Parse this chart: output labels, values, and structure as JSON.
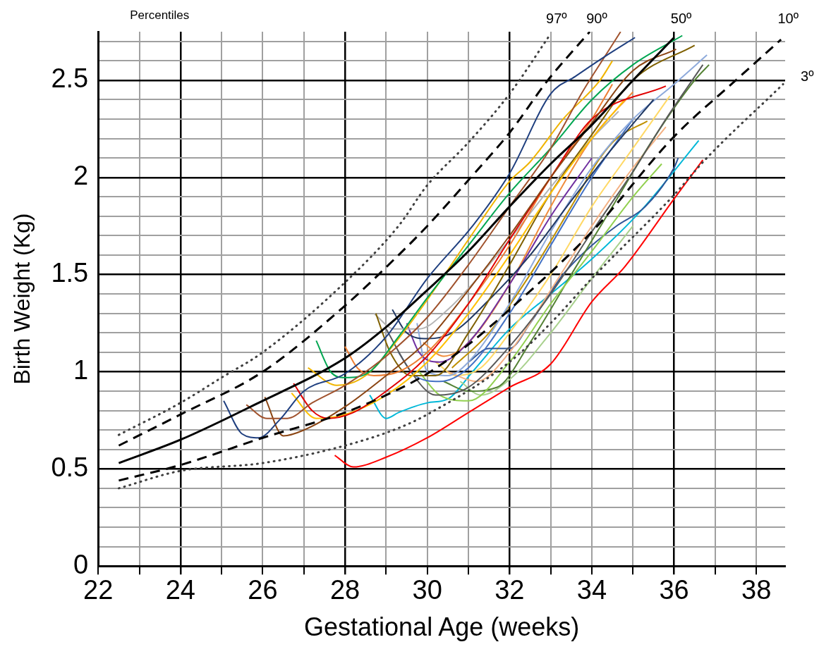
{
  "chart_data": {
    "type": "line",
    "xlabel": "Gestational Age (weeks)",
    "ylabel": "Birth Weight (Kg)",
    "annotations": [
      "Percentiles"
    ],
    "xlim": [
      22,
      38.7
    ],
    "xticks": [
      22,
      {
        "value": 23,
        "label": null
      },
      24,
      {
        "value": 25,
        "label": null
      },
      26,
      {
        "value": 27,
        "label": null
      },
      28,
      {
        "value": 29,
        "label": null
      },
      30,
      {
        "value": 31,
        "label": null
      },
      32,
      {
        "value": 33,
        "label": null
      },
      34,
      {
        "value": 35,
        "label": null
      },
      36,
      {
        "value": 37,
        "label": null
      },
      38
    ],
    "ylim": [
      0,
      2.75
    ],
    "yticks": [
      0,
      {
        "value": 0.1,
        "label": null
      },
      {
        "value": 0.2,
        "label": null
      },
      {
        "value": 0.3,
        "label": null
      },
      {
        "value": 0.4,
        "label": null
      },
      0.5,
      {
        "value": 0.6,
        "label": null
      },
      {
        "value": 0.7,
        "label": null
      },
      {
        "value": 0.8,
        "label": null
      },
      {
        "value": 0.9,
        "label": null
      },
      1,
      {
        "value": 1.1,
        "label": null
      },
      {
        "value": 1.2,
        "label": null
      },
      {
        "value": 1.3,
        "label": null
      },
      {
        "value": 1.4,
        "label": null
      },
      1.5,
      {
        "value": 1.6,
        "label": null
      },
      {
        "value": 1.7,
        "label": null
      },
      {
        "value": 1.8,
        "label": null
      },
      {
        "value": 1.9,
        "label": null
      },
      2,
      {
        "value": 2.1,
        "label": null
      },
      {
        "value": 2.2,
        "label": null
      },
      {
        "value": 2.3,
        "label": null
      },
      {
        "value": 2.4,
        "label": null
      },
      2.5,
      {
        "value": 2.6,
        "label": null
      },
      {
        "value": 2.7,
        "label": null
      }
    ],
    "grid": true,
    "legend": false,
    "marker": "none",
    "line_style": "solid",
    "series": [
      {
        "name": "97º",
        "color": "#404040",
        "line_style": "dotted",
        "x": [
          22.5,
          24,
          25,
          26,
          28,
          29.3,
          30,
          31,
          32,
          32.97
        ],
        "values": [
          0.675,
          0.84,
          0.97,
          1.1,
          1.46,
          1.75,
          1.96,
          2.18,
          2.43,
          2.73
        ]
      },
      {
        "name": "90º",
        "color": "#000000",
        "line_style": "dashed",
        "x": [
          22.5,
          24,
          26,
          28,
          29.3,
          30,
          31.14,
          32,
          32.93,
          33.95
        ],
        "values": [
          0.62,
          0.78,
          1.0,
          1.34,
          1.6,
          1.75,
          2.02,
          2.23,
          2.5,
          2.75
        ]
      },
      {
        "name": "50º",
        "color": "#000000",
        "x": [
          22.5,
          24,
          25.8,
          28,
          29,
          30,
          31,
          32,
          33,
          34,
          35,
          36
        ],
        "values": [
          0.53,
          0.65,
          0.83,
          1.07,
          1.23,
          1.42,
          1.62,
          1.85,
          2.07,
          2.27,
          2.5,
          2.72
        ]
      },
      {
        "name": "10º",
        "color": "#000000",
        "line_style": "dashed",
        "x": [
          22.5,
          24,
          26,
          28,
          29.3,
          30,
          31,
          32,
          34,
          36,
          37.5,
          38.6
        ],
        "values": [
          0.44,
          0.52,
          0.66,
          0.79,
          0.91,
          0.99,
          1.14,
          1.32,
          1.72,
          2.21,
          2.5,
          2.71
        ]
      },
      {
        "name": "3º",
        "color": "#404040",
        "line_style": "dotted",
        "x": [
          22.5,
          24,
          26,
          28,
          29.3,
          30,
          32,
          33,
          34,
          36,
          36.75,
          38.65
        ],
        "values": [
          0.4,
          0.49,
          0.53,
          0.62,
          0.71,
          0.78,
          1.05,
          1.25,
          1.48,
          1.91,
          2.09,
          2.48
        ]
      },
      {
        "color": "#1f3f7f",
        "x": [
          25.05,
          25.5,
          25.9,
          26.4,
          27,
          28,
          29,
          30,
          31.1,
          32,
          33,
          33.6,
          34.3,
          35.05
        ],
        "values": [
          0.85,
          0.68,
          0.66,
          0.75,
          0.9,
          0.99,
          1.18,
          1.48,
          1.75,
          2.02,
          2.43,
          2.52,
          2.62,
          2.72
        ]
      },
      {
        "color": "#a0522d",
        "x": [
          25.6,
          26.1,
          26.6,
          27.2,
          28,
          29,
          30,
          31,
          32,
          33,
          33.8,
          34.4,
          34.7
        ],
        "values": [
          0.83,
          0.76,
          0.76,
          0.84,
          0.93,
          1.08,
          1.28,
          1.55,
          1.85,
          2.15,
          2.45,
          2.65,
          2.75
        ]
      },
      {
        "color": "#8b4513",
        "x": [
          26.05,
          26.5,
          27,
          28,
          29,
          30,
          31,
          32,
          33,
          34,
          35,
          36.05
        ],
        "values": [
          0.87,
          0.67,
          0.7,
          0.82,
          0.98,
          1.16,
          1.42,
          1.7,
          2.0,
          2.28,
          2.55,
          2.66
        ]
      },
      {
        "color": "#e00000",
        "x": [
          26.75,
          27.2,
          27.6,
          28.2,
          29,
          30,
          31,
          32,
          33,
          34,
          35.8
        ],
        "values": [
          0.94,
          0.8,
          0.76,
          0.79,
          0.9,
          1.08,
          1.35,
          1.68,
          2.0,
          2.3,
          2.47
        ]
      },
      {
        "color": "#ffc000",
        "x": [
          26.7,
          27.3,
          28,
          29,
          30,
          31,
          32,
          33,
          34,
          34.8
        ],
        "values": [
          0.89,
          0.76,
          0.78,
          0.88,
          1.05,
          1.3,
          1.6,
          1.92,
          2.2,
          2.4
        ]
      },
      {
        "color": "#00a651",
        "x": [
          27.3,
          27.65,
          28,
          28.6,
          29.3,
          30,
          31,
          32,
          33,
          34,
          35,
          36.2
        ],
        "values": [
          1.16,
          1.0,
          0.97,
          1.0,
          1.18,
          1.38,
          1.65,
          1.92,
          2.15,
          2.4,
          2.58,
          2.73
        ]
      },
      {
        "color": "#f0b400",
        "x": [
          27.1,
          27.8,
          28.5,
          29.3,
          30,
          31,
          32,
          32.5,
          33.3,
          34.2,
          34.5
        ],
        "values": [
          1.02,
          0.93,
          0.98,
          1.17,
          1.37,
          1.68,
          1.98,
          2.08,
          2.3,
          2.5,
          2.6
        ]
      },
      {
        "color": "#ed7d31",
        "x": [
          28,
          28.3,
          28.7,
          29.3,
          30,
          31,
          32,
          33,
          34,
          34.5
        ],
        "values": [
          1.13,
          1.02,
          0.98,
          1.0,
          1.1,
          1.35,
          1.65,
          2.0,
          2.3,
          2.48
        ]
      },
      {
        "color": "#7f6000",
        "x": [
          28.75,
          29.1,
          29.6,
          30.2,
          31,
          32,
          33,
          34,
          35,
          36.5
        ],
        "values": [
          1.3,
          1.1,
          0.98,
          0.98,
          1.2,
          1.55,
          1.92,
          2.22,
          2.5,
          2.68
        ]
      },
      {
        "color": "#b4b4b4",
        "x": [
          28.7,
          29.2,
          29.8,
          30.5,
          31.3,
          32,
          33,
          34,
          34.65
        ],
        "values": [
          1.3,
          1.22,
          1.22,
          1.32,
          1.5,
          1.68,
          1.95,
          2.2,
          2.34
        ]
      },
      {
        "color": "#595959",
        "x": [
          29,
          29.6,
          30.2,
          31,
          32,
          33,
          34,
          35,
          35.8,
          36.7
        ],
        "values": [
          1.22,
          1.0,
          0.88,
          0.92,
          1.13,
          1.4,
          1.72,
          2.03,
          2.3,
          2.58
        ]
      },
      {
        "color": "#203864",
        "x": [
          29.15,
          29.5,
          30,
          30.6,
          31.5,
          32.5,
          33.5,
          34.5,
          35.5
        ],
        "values": [
          1.32,
          1.2,
          1.17,
          1.2,
          1.37,
          1.6,
          1.88,
          2.15,
          2.4
        ]
      },
      {
        "color": "#7030a0",
        "x": [
          29.5,
          29.8,
          30.3,
          31,
          32,
          33,
          34
        ],
        "values": [
          1.25,
          1.1,
          1.05,
          1.15,
          1.45,
          1.8,
          2.1
        ]
      },
      {
        "color": "#8eaadb",
        "x": [
          29.75,
          30,
          30.5,
          31,
          32,
          33,
          34,
          35,
          36,
          36.8
        ],
        "values": [
          1.25,
          1.0,
          0.98,
          1.05,
          1.35,
          1.72,
          2.05,
          2.3,
          2.48,
          2.63
        ]
      },
      {
        "color": "#4472c4",
        "x": [
          29.3,
          29.7,
          30.3,
          31,
          32,
          33,
          34,
          35
        ],
        "values": [
          1.1,
          0.98,
          0.95,
          1.02,
          1.3,
          1.65,
          2.0,
          2.3
        ]
      },
      {
        "color": "#92d050",
        "x": [
          29.8,
          30.3,
          31,
          32,
          33,
          34,
          35,
          35.7
        ],
        "values": [
          1.0,
          0.88,
          0.85,
          1.05,
          1.35,
          1.62,
          1.9,
          2.07
        ]
      },
      {
        "color": "#548235",
        "x": [
          30.4,
          31,
          31.7,
          32.5,
          33.5,
          34.5,
          35.5,
          36.5,
          36.85
        ],
        "values": [
          0.95,
          0.9,
          0.92,
          1.15,
          1.5,
          1.85,
          2.2,
          2.5,
          2.58
        ]
      },
      {
        "color": "#f4b183",
        "x": [
          30.5,
          31.2,
          32,
          33,
          34,
          35,
          35.8
        ],
        "values": [
          1.0,
          0.95,
          1.1,
          1.42,
          1.75,
          2.05,
          2.26
        ]
      },
      {
        "color": "#2f5597",
        "x": [
          31,
          31.5,
          32,
          32.5,
          33.3,
          34,
          34.6,
          35.3,
          36,
          36.1
        ],
        "values": [
          1.05,
          1.12,
          1.12,
          1.25,
          1.5,
          1.65,
          1.75,
          1.85,
          2.05,
          2.1
        ]
      },
      {
        "color": "#a9d18e",
        "x": [
          30.8,
          31.3,
          32,
          33,
          34,
          35
        ],
        "values": [
          0.95,
          0.88,
          0.96,
          1.2,
          1.48,
          1.75
        ]
      },
      {
        "color": "#f08c3c",
        "x": [
          29.9,
          30.4,
          31,
          32,
          33,
          34,
          35
        ],
        "values": [
          1.15,
          1.08,
          1.15,
          1.45,
          1.85,
          2.2,
          2.44
        ]
      },
      {
        "color": "#ffd966",
        "x": [
          30.2,
          30.7,
          31.3,
          32,
          33,
          34,
          35,
          35.9
        ],
        "values": [
          1.05,
          0.98,
          1.02,
          1.2,
          1.5,
          1.85,
          2.15,
          2.42
        ]
      },
      {
        "color": "#bf9000",
        "x": [
          30.6,
          31.5,
          32.5,
          33.5,
          34.2,
          34.6,
          35.35
        ],
        "values": [
          1.02,
          1.2,
          1.5,
          1.85,
          2.1,
          2.2,
          2.29
        ]
      },
      {
        "color": "#00b8d8",
        "x": [
          28.6,
          29,
          29.3,
          30,
          30.5,
          31.1,
          32,
          33,
          34,
          35.2,
          36.6
        ],
        "values": [
          0.88,
          0.76,
          0.79,
          0.84,
          0.86,
          1.0,
          1.22,
          1.4,
          1.58,
          1.83,
          2.19
        ]
      },
      {
        "color": "#ff0000",
        "x": [
          27.75,
          28.2,
          29,
          30,
          31,
          32,
          33,
          34,
          34.8,
          36,
          36.7
        ],
        "values": [
          0.57,
          0.51,
          0.56,
          0.66,
          0.79,
          0.92,
          1.04,
          1.36,
          1.54,
          1.89,
          2.09
        ]
      }
    ]
  }
}
